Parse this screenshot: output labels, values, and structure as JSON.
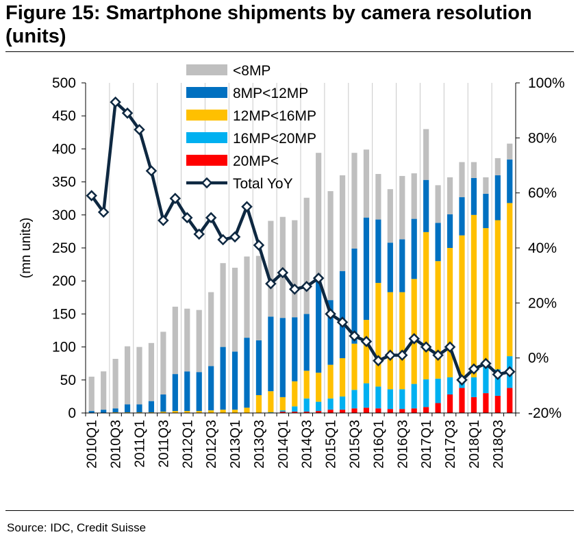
{
  "header": {
    "title": "Figure 15: Smartphone shipments by camera resolution (units)"
  },
  "footer": {
    "source": "Source: IDC, Credit Suisse"
  },
  "chart_data": {
    "type": "bar",
    "stacked": true,
    "categories": [
      "2010Q1",
      "2010Q2",
      "2010Q3",
      "2010Q4",
      "2011Q1",
      "2011Q2",
      "2011Q3",
      "2011Q4",
      "2012Q1",
      "2012Q2",
      "2012Q3",
      "2012Q4",
      "2013Q1",
      "2013Q2",
      "2013Q3",
      "2013Q4",
      "2014Q1",
      "2014Q2",
      "2014Q3",
      "2014Q4",
      "2015Q1",
      "2015Q2",
      "2015Q3",
      "2015Q4",
      "2016Q1",
      "2016Q2",
      "2016Q3",
      "2016Q4",
      "2017Q1",
      "2017Q2",
      "2017Q3",
      "2017Q4",
      "2018Q1",
      "2018Q2",
      "2018Q3",
      "2018Q4"
    ],
    "x_tick_labels": [
      "2010Q1",
      "2010Q3",
      "2011Q1",
      "2011Q3",
      "2012Q1",
      "2012Q3",
      "2013Q1",
      "2013Q3",
      "2014Q1",
      "2014Q3",
      "2015Q1",
      "2015Q3",
      "2016Q1",
      "2016Q3",
      "2017Q1",
      "2017Q3",
      "2018Q1",
      "2018Q3"
    ],
    "series": [
      {
        "name": "20MP<",
        "color": "#ff0000",
        "values": [
          0,
          0,
          0,
          0,
          0,
          0,
          0,
          0,
          0,
          0,
          0,
          0,
          0,
          0,
          0,
          0,
          2,
          2,
          2,
          3,
          5,
          5,
          7,
          8,
          7,
          6,
          6,
          7,
          9,
          15,
          28,
          38,
          24,
          30,
          26,
          38
        ]
      },
      {
        "name": "16MP<20MP",
        "color": "#00b0f0",
        "values": [
          0,
          0,
          0,
          0,
          0,
          0,
          0,
          0,
          0,
          0,
          0,
          0,
          0,
          0,
          0,
          1,
          2,
          8,
          20,
          14,
          17,
          20,
          28,
          37,
          33,
          30,
          30,
          37,
          42,
          37,
          26,
          16,
          30,
          40,
          40,
          48
        ]
      },
      {
        "name": "12MP<16MP",
        "color": "#ffc000",
        "values": [
          0,
          0,
          1,
          1,
          1,
          1,
          2,
          3,
          3,
          3,
          4,
          5,
          5,
          8,
          27,
          32,
          20,
          38,
          42,
          44,
          51,
          58,
          70,
          96,
          157,
          147,
          147,
          159,
          223,
          178,
          196,
          215,
          246,
          210,
          226,
          232
        ]
      },
      {
        "name": "8MP<12MP",
        "color": "#0070c0",
        "values": [
          3,
          5,
          6,
          12,
          12,
          17,
          26,
          56,
          60,
          59,
          67,
          95,
          88,
          106,
          83,
          113,
          120,
          97,
          86,
          138,
          98,
          132,
          144,
          155,
          96,
          75,
          80,
          91,
          79,
          58,
          51,
          58,
          56,
          52,
          68,
          66
        ]
      },
      {
        "name": "<8MP",
        "color": "#bfbfbf",
        "values": [
          52,
          58,
          75,
          88,
          87,
          88,
          95,
          102,
          95,
          94,
          112,
          127,
          127,
          123,
          128,
          145,
          153,
          147,
          176,
          195,
          165,
          145,
          145,
          103,
          69,
          81,
          96,
          69,
          77,
          57,
          56,
          53,
          24,
          25,
          26,
          24
        ]
      }
    ],
    "line_series": {
      "name": "Total YoY",
      "color": "#0e2841",
      "axis": "right",
      "values": [
        59,
        53,
        93,
        89,
        83,
        68,
        50,
        58,
        51,
        45,
        51,
        43,
        44,
        55,
        41,
        27,
        31,
        25,
        26,
        29,
        16,
        13,
        8,
        6,
        -1,
        1,
        1,
        7,
        4,
        1,
        4,
        -8,
        -4,
        -2,
        -6,
        -5
      ]
    },
    "y_left": {
      "label": "(mn units)",
      "min": 0,
      "max": 500,
      "ticks": [
        0,
        50,
        100,
        150,
        200,
        250,
        300,
        350,
        400,
        450,
        500
      ]
    },
    "y_right": {
      "min": -20,
      "max": 100,
      "ticks": [
        "-20%",
        "0%",
        "20%",
        "40%",
        "60%",
        "80%",
        "100%"
      ]
    },
    "legend": {
      "position": "top-center-inside",
      "order": [
        "<8MP",
        "8MP<12MP",
        "12MP<16MP",
        "16MP<20MP",
        "20MP<",
        "Total YoY"
      ]
    },
    "grid": "vertical"
  }
}
